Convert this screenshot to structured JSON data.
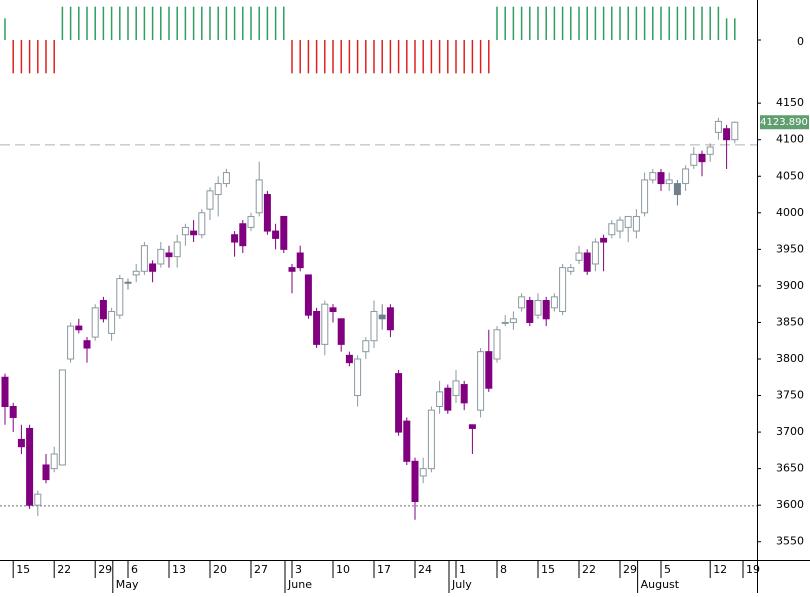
{
  "chart_data": {
    "type": "candlestick",
    "categories": [
      null,
      "15",
      null,
      null,
      null,
      null,
      "22",
      null,
      null,
      null,
      null,
      "29",
      null,
      null,
      null,
      "6",
      null,
      null,
      null,
      null,
      "13",
      null,
      null,
      null,
      null,
      "20",
      null,
      null,
      null,
      null,
      "27",
      null,
      null,
      null,
      null,
      "3",
      null,
      null,
      null,
      null,
      "10",
      null,
      null,
      null,
      null,
      "17",
      null,
      null,
      null,
      null,
      "24",
      null,
      null,
      null,
      null,
      "1",
      null,
      null,
      null,
      null,
      "8",
      null,
      null,
      null,
      null,
      "15",
      null,
      null,
      null,
      null,
      "22",
      null,
      null,
      null,
      null,
      "29",
      null,
      null,
      null,
      null,
      "5",
      null,
      null,
      null,
      null,
      null,
      "12",
      null,
      null,
      null,
      "19"
    ],
    "months": [
      null,
      null,
      null,
      null,
      null,
      null,
      null,
      null,
      null,
      null,
      null,
      null,
      null,
      null,
      "May",
      null,
      null,
      null,
      null,
      null,
      null,
      null,
      null,
      null,
      null,
      null,
      null,
      null,
      null,
      null,
      null,
      null,
      null,
      null,
      null,
      "June",
      null,
      null,
      null,
      null,
      null,
      null,
      null,
      null,
      null,
      null,
      null,
      null,
      null,
      null,
      null,
      null,
      null,
      null,
      null,
      "July",
      null,
      null,
      null,
      null,
      null,
      null,
      null,
      null,
      null,
      null,
      null,
      null,
      null,
      null,
      null,
      null,
      null,
      null,
      null,
      null,
      null,
      null,
      "August",
      null,
      null,
      null,
      null,
      null,
      null,
      null,
      null,
      null,
      null,
      null,
      null
    ],
    "open": [
      3775,
      3735,
      3690,
      3705,
      3600,
      3655,
      3650,
      3655,
      3800,
      3845,
      3825,
      3830,
      3880,
      3835,
      3860,
      3905,
      3915,
      3920,
      3930,
      3930,
      3945,
      3940,
      3970,
      3975,
      3970,
      4005,
      4025,
      4040,
      3970,
      3985,
      3980,
      4000,
      4025,
      3975,
      3995,
      3925,
      3945,
      3915,
      3865,
      3820,
      3870,
      3855,
      3805,
      3750,
      3810,
      3825,
      3855,
      3870,
      3780,
      3715,
      3660,
      3640,
      3650,
      3735,
      3760,
      3750,
      3765,
      3710,
      3730,
      3810,
      3800,
      3850,
      3850,
      3870,
      3880,
      3860,
      3880,
      3870,
      3865,
      3920,
      3935,
      3945,
      3930,
      3965,
      3970,
      3975,
      3980,
      3975,
      4000,
      4045,
      4055,
      4040,
      4025,
      4040,
      4065,
      4080,
      4080,
      4110,
      4115,
      4100,
      null
    ],
    "high": [
      3780,
      3740,
      3710,
      3710,
      3620,
      3670,
      3680,
      3785,
      3850,
      3855,
      3830,
      3875,
      3885,
      3870,
      3915,
      3910,
      3930,
      3960,
      3935,
      3960,
      3955,
      3970,
      3985,
      3990,
      4005,
      4035,
      4050,
      4060,
      3975,
      3990,
      4000,
      4070,
      4030,
      3985,
      3995,
      3930,
      3955,
      3915,
      3870,
      3880,
      3875,
      3855,
      3810,
      3805,
      3830,
      3880,
      3875,
      3875,
      3785,
      3720,
      3665,
      3665,
      3735,
      3770,
      3765,
      3785,
      3770,
      3710,
      3815,
      3840,
      3845,
      3860,
      3865,
      3890,
      3885,
      3890,
      3885,
      3890,
      3930,
      3930,
      3955,
      3950,
      3965,
      3970,
      3990,
      3995,
      3995,
      4005,
      4055,
      4060,
      4060,
      4055,
      4045,
      4065,
      4090,
      4085,
      4095,
      4130,
      4120,
      4125,
      null
    ],
    "low": [
      3710,
      3700,
      3670,
      3595,
      3585,
      3630,
      3645,
      3655,
      3795,
      3835,
      3795,
      3825,
      3850,
      3825,
      3855,
      3895,
      3905,
      3915,
      3905,
      3925,
      3925,
      3925,
      3955,
      3960,
      3965,
      3990,
      3995,
      4035,
      3940,
      3945,
      3975,
      3995,
      3970,
      3950,
      3945,
      3890,
      3920,
      3855,
      3815,
      3805,
      3850,
      3810,
      3790,
      3735,
      3800,
      3815,
      3840,
      3830,
      3695,
      3655,
      3580,
      3630,
      3645,
      3725,
      3725,
      3740,
      3730,
      3670,
      3720,
      3755,
      3795,
      3845,
      3840,
      3865,
      3845,
      3855,
      3845,
      3865,
      3860,
      3915,
      3930,
      3915,
      3920,
      3920,
      3965,
      3965,
      3960,
      3965,
      3995,
      4040,
      4030,
      4030,
      4010,
      4030,
      4060,
      4050,
      4070,
      4100,
      4060,
      4095,
      null
    ],
    "close": [
      3735,
      3720,
      3680,
      3600,
      3615,
      3635,
      3670,
      3785,
      3845,
      3840,
      3815,
      3870,
      3855,
      3865,
      3910,
      3905,
      3920,
      3955,
      3920,
      3950,
      3940,
      3960,
      3980,
      3970,
      4000,
      4030,
      4040,
      4055,
      3960,
      3955,
      3995,
      4045,
      3975,
      3965,
      3950,
      3920,
      3925,
      3860,
      3820,
      3875,
      3865,
      3820,
      3795,
      3800,
      3825,
      3865,
      3860,
      3840,
      3700,
      3660,
      3605,
      3650,
      3730,
      3755,
      3730,
      3770,
      3740,
      3705,
      3810,
      3760,
      3840,
      3850,
      3855,
      3885,
      3850,
      3880,
      3855,
      3885,
      3925,
      3925,
      3945,
      3920,
      3960,
      3960,
      3985,
      3990,
      3995,
      3995,
      4045,
      4055,
      4040,
      4045,
      4040,
      4060,
      4080,
      4070,
      4090,
      4125,
      4100,
      4123.89,
      null
    ],
    "last_value_label": "4123.890",
    "ylim": [
      3525,
      4168
    ],
    "yticks": [
      3550,
      3600,
      3650,
      3700,
      3750,
      3800,
      3850,
      3900,
      3950,
      4000,
      4050,
      4100,
      4150
    ],
    "hlines": [
      {
        "value": 4093,
        "style": "dashed"
      },
      {
        "value": 3599,
        "style": "dotted"
      }
    ],
    "colors": {
      "up": "#8a9aa0",
      "down": "#800080",
      "weak": "#6f808c",
      "label": "#5f9e6e"
    },
    "indicator": {
      "values": [
        0.65,
        -1,
        -1,
        -1,
        -1,
        -1,
        -1,
        1,
        1,
        1,
        1,
        1,
        1,
        1,
        1,
        1,
        1,
        1,
        1,
        1,
        1,
        1,
        1,
        1,
        1,
        1,
        1,
        1,
        1,
        1,
        1,
        1,
        1,
        1,
        1,
        -1,
        -1,
        -1,
        -1,
        -1,
        -1,
        -1,
        -1,
        -1,
        -1,
        -1,
        -1,
        -1,
        -1,
        -1,
        -1,
        -1,
        -1,
        -1,
        -1,
        -1,
        -1,
        -1,
        -1,
        -1,
        1,
        1,
        1,
        1,
        1,
        1,
        1,
        1,
        1,
        1,
        1,
        1,
        1,
        1,
        1,
        1,
        1,
        1,
        1,
        1,
        1,
        1,
        1,
        1,
        1,
        1,
        1,
        1,
        0.65,
        0.65,
        null
      ],
      "ylim": [
        -1.2,
        1.2
      ],
      "yticks": [
        0
      ],
      "up_color": "#2e9e5e",
      "down_color": "#e0201f"
    }
  }
}
